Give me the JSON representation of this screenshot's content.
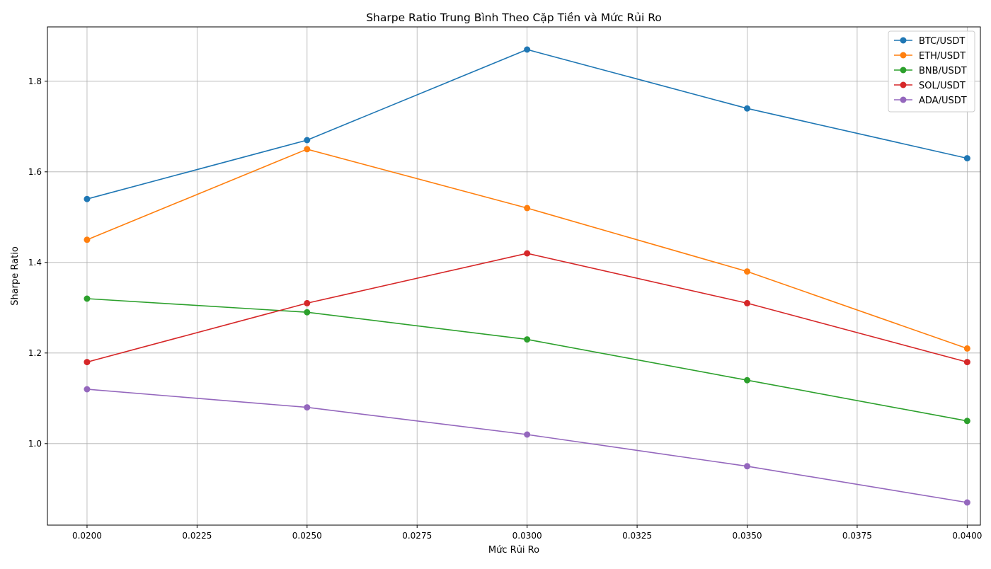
{
  "chart_data": {
    "type": "line",
    "title": "Sharpe Ratio Trung Bình Theo Cặp Tiền và Mức Rủi Ro",
    "xlabel": "Mức Rủi Ro",
    "ylabel": "Sharpe Ratio",
    "x": [
      0.02,
      0.025,
      0.03,
      0.035,
      0.04
    ],
    "xlim": [
      0.0191,
      0.0403
    ],
    "ylim": [
      0.82,
      1.92
    ],
    "xticks": [
      "0.0200",
      "0.0225",
      "0.0250",
      "0.0275",
      "0.0300",
      "0.0325",
      "0.0350",
      "0.0375",
      "0.0400"
    ],
    "yticks": [
      "1.0",
      "1.2",
      "1.4",
      "1.6",
      "1.8"
    ],
    "grid": true,
    "legend_position": "top-right",
    "series": [
      {
        "name": "BTC/USDT",
        "color": "#1f77b4",
        "values": [
          1.54,
          1.67,
          1.87,
          1.74,
          1.63
        ]
      },
      {
        "name": "ETH/USDT",
        "color": "#ff7f0e",
        "values": [
          1.45,
          1.65,
          1.52,
          1.38,
          1.21
        ]
      },
      {
        "name": "BNB/USDT",
        "color": "#2ca02c",
        "values": [
          1.32,
          1.29,
          1.23,
          1.14,
          1.05
        ]
      },
      {
        "name": "SOL/USDT",
        "color": "#d62728",
        "values": [
          1.18,
          1.31,
          1.42,
          1.31,
          1.18
        ]
      },
      {
        "name": "ADA/USDT",
        "color": "#9467bd",
        "values": [
          1.12,
          1.08,
          1.02,
          0.95,
          0.87
        ]
      }
    ]
  }
}
